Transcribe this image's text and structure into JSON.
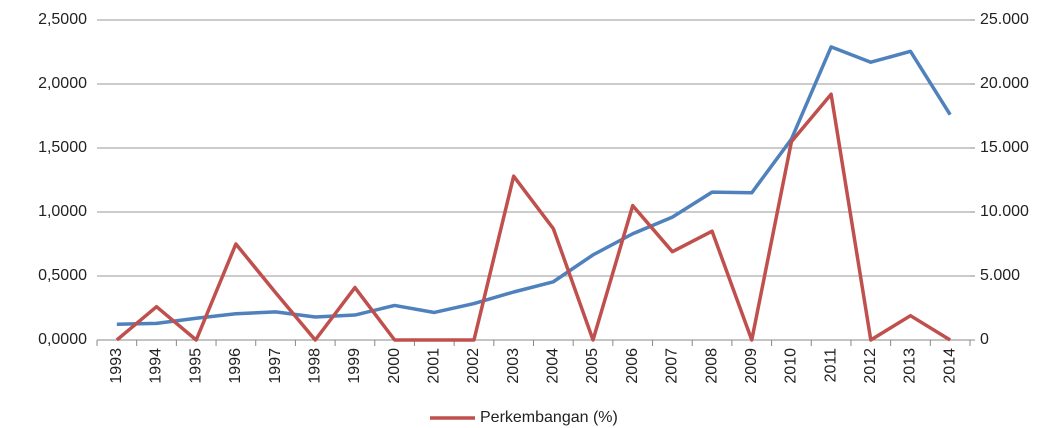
{
  "chart_data": {
    "type": "line",
    "categories": [
      "1993",
      "1994",
      "1995",
      "1996",
      "1997",
      "1998",
      "1999",
      "2000",
      "2001",
      "2002",
      "2003",
      "2004",
      "2005",
      "2006",
      "2007",
      "2008",
      "2009",
      "2010",
      "2011",
      "2012",
      "2013",
      "2014"
    ],
    "series": [
      {
        "color": "#4f81bd",
        "axis": "y2",
        "values": [
          1230,
          1300,
          1700,
          2050,
          2200,
          1800,
          1950,
          2700,
          2150,
          2850,
          3750,
          4550,
          6650,
          8300,
          9600,
          11550,
          11500,
          15700,
          22900,
          21700,
          22550,
          17600
        ]
      },
      {
        "name": "Perkembangan (%)",
        "color": "#c0504d",
        "values": [
          0,
          0.26,
          0,
          0.75,
          0.37,
          0,
          0.41,
          0,
          0,
          0,
          1.28,
          0.87,
          0,
          1.05,
          0.69,
          0.85,
          0,
          1.55,
          1.92,
          0,
          0.19,
          0
        ]
      }
    ],
    "ylim": [
      0,
      2.5
    ],
    "yticks": [
      {
        "value": 0,
        "label": "0,0000"
      },
      {
        "value": 0.5,
        "label": "0,5000"
      },
      {
        "value": 1,
        "label": "1,0000"
      },
      {
        "value": 1.5,
        "label": "1,5000"
      },
      {
        "value": 2,
        "label": "2,0000"
      },
      {
        "value": 2.5,
        "label": "2,5000"
      }
    ],
    "y2lim": [
      0,
      25000
    ],
    "y2ticks": [
      0,
      {
        "value": 5000,
        "label": "5.000"
      },
      {
        "value": 10000,
        "label": "10.000"
      },
      {
        "value": 15000,
        "label": "15.000"
      },
      {
        "value": 20000,
        "label": "20.000"
      },
      {
        "value": 25000,
        "label": "25.000"
      }
    ],
    "grid": true
  }
}
